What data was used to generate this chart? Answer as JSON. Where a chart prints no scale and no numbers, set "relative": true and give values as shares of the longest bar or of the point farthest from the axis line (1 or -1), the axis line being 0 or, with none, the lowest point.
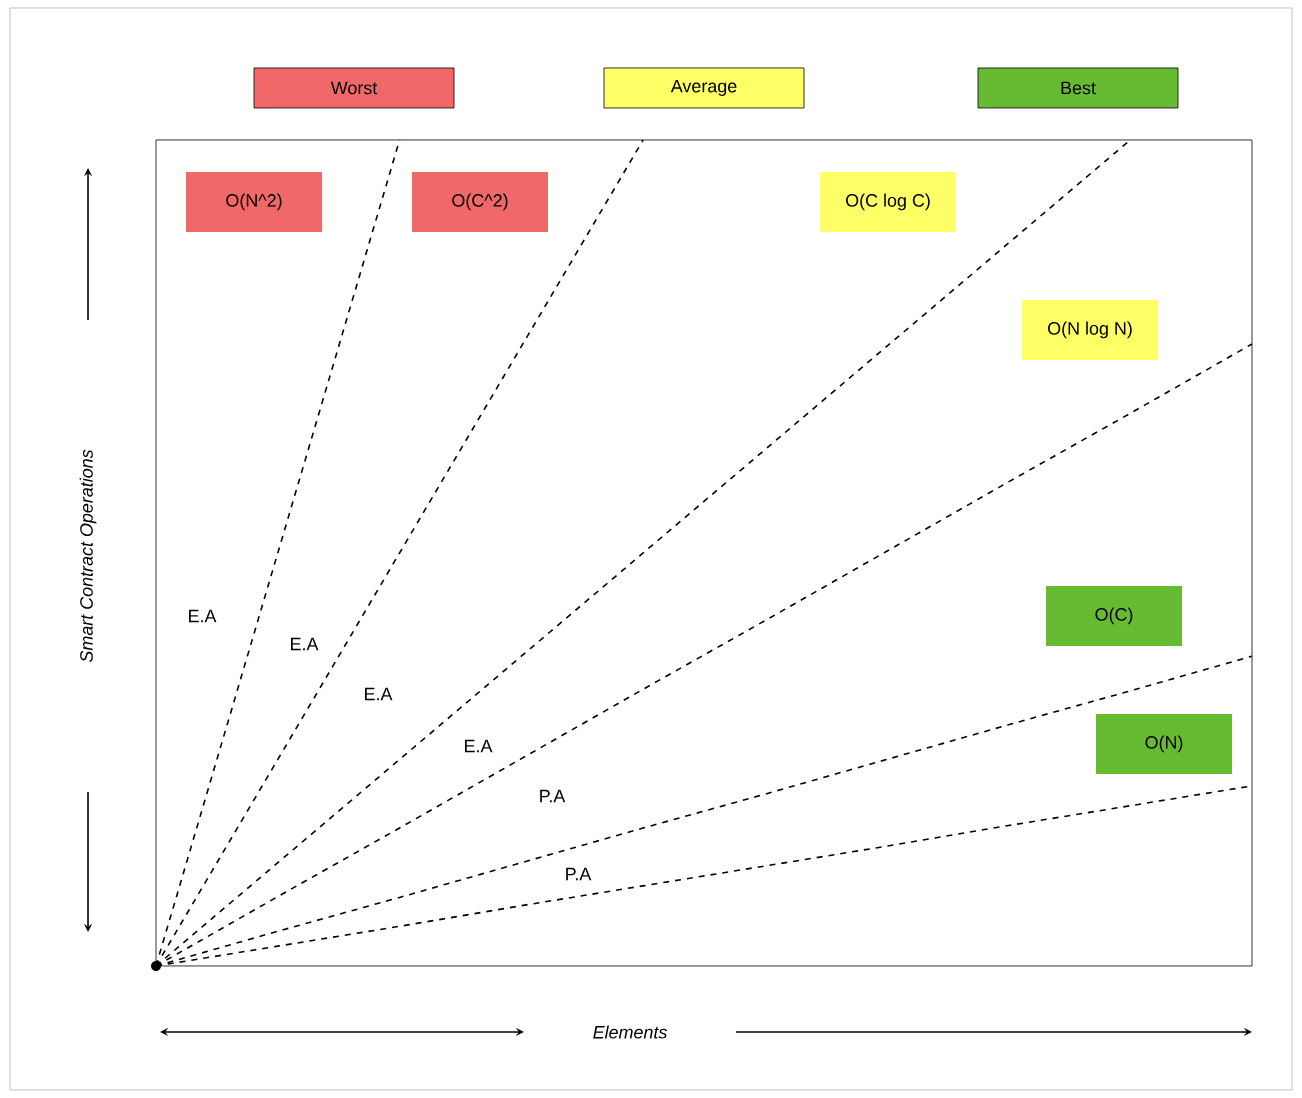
{
  "chart_data": {
    "type": "line",
    "relative": true,
    "line_style": "dashed",
    "marker": "none",
    "xlabel": "Elements",
    "ylabel": "Smart Contract Operations",
    "categories": [
      null,
      null,
      null,
      null,
      null,
      null,
      null,
      null,
      null,
      null
    ],
    "series": [
      {
        "color": "#000000",
        "values": [
          0,
          0.5,
          1,
          null,
          null,
          null,
          null,
          null,
          null,
          null
        ]
      },
      {
        "color": "#000000",
        "values": [
          0,
          0.25,
          0.5,
          0.75,
          1,
          null,
          null,
          null,
          null,
          null
        ]
      },
      {
        "color": "#000000",
        "values": [
          0,
          0.125,
          0.25,
          0.375,
          0.5,
          0.625,
          0.75,
          0.875,
          1,
          null
        ]
      },
      {
        "color": "#000000",
        "values": [
          0,
          0.084,
          0.167,
          0.251,
          0.335,
          0.418,
          0.502,
          0.586,
          0.669,
          0.753
        ]
      },
      {
        "color": "#000000",
        "values": [
          0,
          0.042,
          0.083,
          0.125,
          0.167,
          0.208,
          0.25,
          0.292,
          0.333,
          0.375
        ]
      },
      {
        "color": "#000000",
        "values": [
          0,
          0.024,
          0.048,
          0.073,
          0.097,
          0.121,
          0.145,
          0.17,
          0.194,
          0.218
        ]
      }
    ],
    "annotations": [
      "Worst",
      "Average",
      "Best",
      "O(N^2)",
      "O(C^2)",
      "O(C log C)",
      "O(N log N)",
      "O(C)",
      "O(N)",
      "E.A",
      "E.A",
      "E.A",
      "E.A",
      "P.A",
      "P.A"
    ]
  }
}
